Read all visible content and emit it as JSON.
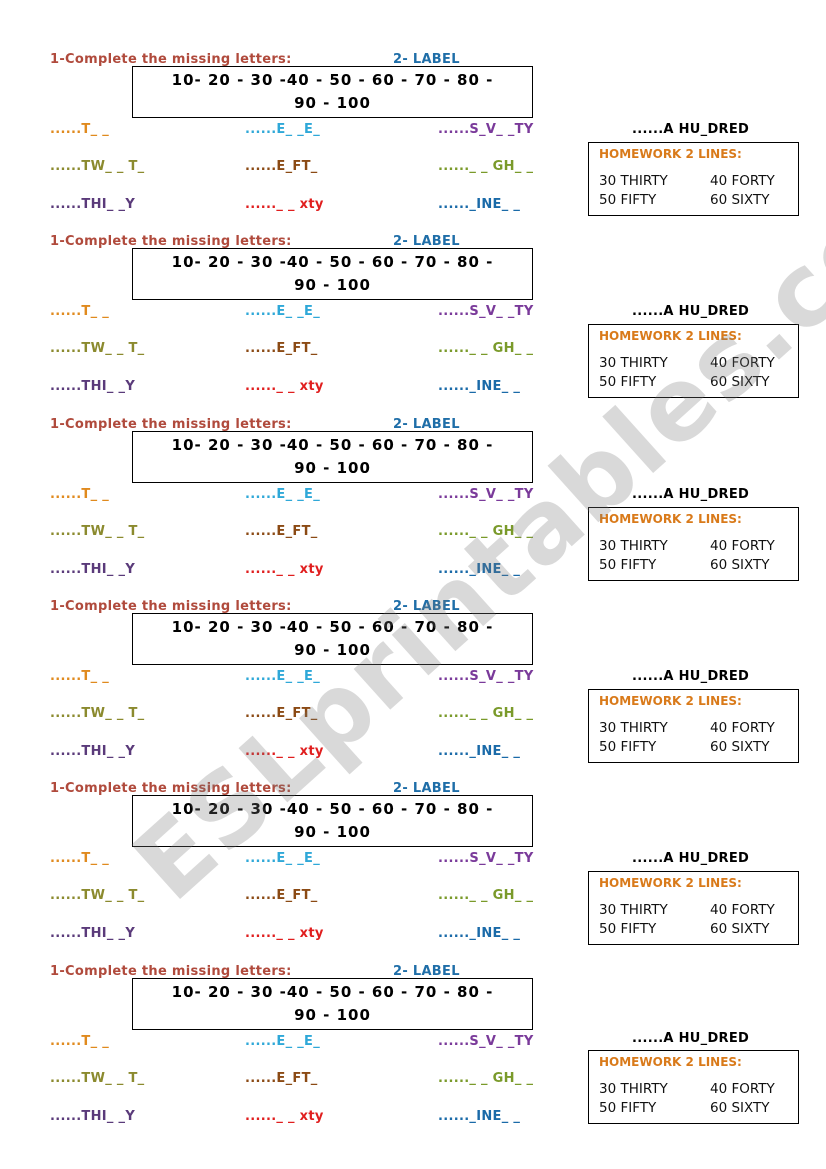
{
  "instruction": "1-Complete the missing letters:",
  "label_heading": "2- LABEL",
  "numbers_line1": "10- 20 - 30 -40 - 50 - 60 - 70 - 80 -",
  "numbers_line2": "90 - 100",
  "words": {
    "w1": "......T_ _",
    "w2": "......E_ _E_",
    "w3": "......S_V_ _TY",
    "w4": "......TW_ _ T_",
    "w5": "......E_FT_",
    "w6": "......_ _ GH_ _",
    "w7": "......THI_ _Y",
    "w8": "......_ _ xty",
    "w9": "......_INE_ _"
  },
  "hundred": "......A HU_DRED",
  "homework": {
    "title": "HOMEWORK 2 LINES:",
    "items": [
      "30 THIRTY",
      "40 FORTY",
      "50 FIFTY",
      "60 SIXTY"
    ]
  },
  "watermark": "ESLprintables.com",
  "colors": {
    "instruction": "#b04a3c",
    "label": "#1f6ea8",
    "w1": "#e08a1e",
    "w2": "#2fa8d8",
    "w3": "#7a3a9a",
    "w4": "#8b8a2e",
    "w5": "#8b4a14",
    "w6": "#7a9a2a",
    "w7": "#5a3a7a",
    "w8": "#e01e1e",
    "w9": "#1a6aa8",
    "hw_title": "#d97a1a"
  }
}
